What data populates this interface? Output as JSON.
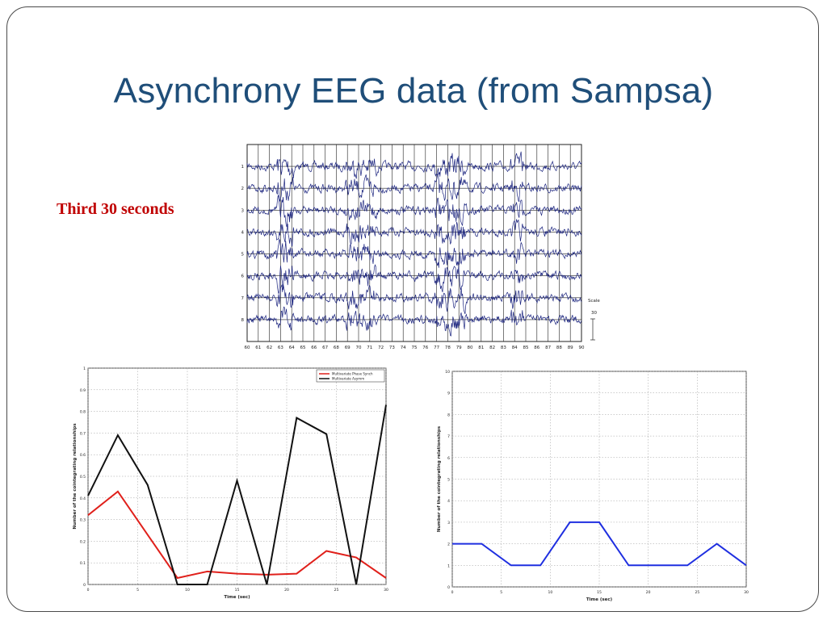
{
  "slide": {
    "title": "Asynchrony EEG data (from Sampsa)",
    "subtitle": "Third 30 seconds",
    "title_color": "#1f4e79",
    "subtitle_color": "#c00000"
  },
  "chart_data": [
    {
      "type": "line",
      "title": "",
      "xlabel": "",
      "ylabel": "",
      "x_ticks": [
        "60",
        "61",
        "62",
        "63",
        "64",
        "65",
        "66",
        "67",
        "68",
        "69",
        "70",
        "71",
        "72",
        "73",
        "74",
        "75",
        "76",
        "77",
        "78",
        "79",
        "80",
        "81",
        "82",
        "83",
        "84",
        "85",
        "86",
        "87",
        "88",
        "89",
        "90"
      ],
      "channel_labels": [
        "1",
        "2",
        "3",
        "4",
        "5",
        "6",
        "7",
        "8"
      ],
      "xlim": [
        60,
        90
      ],
      "scale_label": "Scale",
      "scale_value": "30",
      "color": "#1a237e",
      "grid": true
    },
    {
      "type": "line",
      "title": "",
      "xlabel": "Time (sec)",
      "ylabel": "Number of the cointegrating relationships",
      "xlim": [
        0,
        30
      ],
      "ylim": [
        0,
        1
      ],
      "x_ticks": [
        0,
        5,
        10,
        15,
        20,
        25,
        30
      ],
      "y_ticks": [
        0,
        0.1,
        0.2,
        0.3,
        0.4,
        0.5,
        0.6,
        0.7,
        0.8,
        0.9,
        1
      ],
      "legend": "top-right",
      "grid": true,
      "series": [
        {
          "name": "Multivariate Phase Synch",
          "color": "#e0201b",
          "x": [
            0,
            3,
            6,
            9,
            12,
            15,
            18,
            21,
            24,
            27,
            30
          ],
          "values": [
            0.32,
            0.43,
            0.23,
            0.03,
            0.06,
            0.05,
            0.045,
            0.05,
            0.155,
            0.125,
            0.03
          ]
        },
        {
          "name": "Multivariate Asymm",
          "color": "#111111",
          "x": [
            0,
            3,
            6,
            9,
            12,
            15,
            18,
            21,
            24,
            27,
            30
          ],
          "values": [
            0.41,
            0.69,
            0.46,
            0.0,
            0.0,
            0.48,
            0.0,
            0.77,
            0.695,
            0.0,
            0.83
          ]
        }
      ]
    },
    {
      "type": "line",
      "title": "",
      "xlabel": "Time (sec)",
      "ylabel": "Number of the cointegrating relationships",
      "xlim": [
        0,
        30
      ],
      "ylim": [
        0,
        10
      ],
      "x_ticks": [
        0,
        5,
        10,
        15,
        20,
        25,
        30
      ],
      "y_ticks": [
        0,
        1,
        2,
        3,
        4,
        5,
        6,
        7,
        8,
        9,
        10
      ],
      "grid": true,
      "series": [
        {
          "color": "#1f2fe0",
          "x": [
            0,
            3,
            6,
            9,
            12,
            15,
            18,
            21,
            24,
            27,
            30
          ],
          "values": [
            2,
            2,
            1,
            1,
            3,
            3,
            1,
            1,
            1,
            2,
            1
          ]
        }
      ]
    }
  ]
}
